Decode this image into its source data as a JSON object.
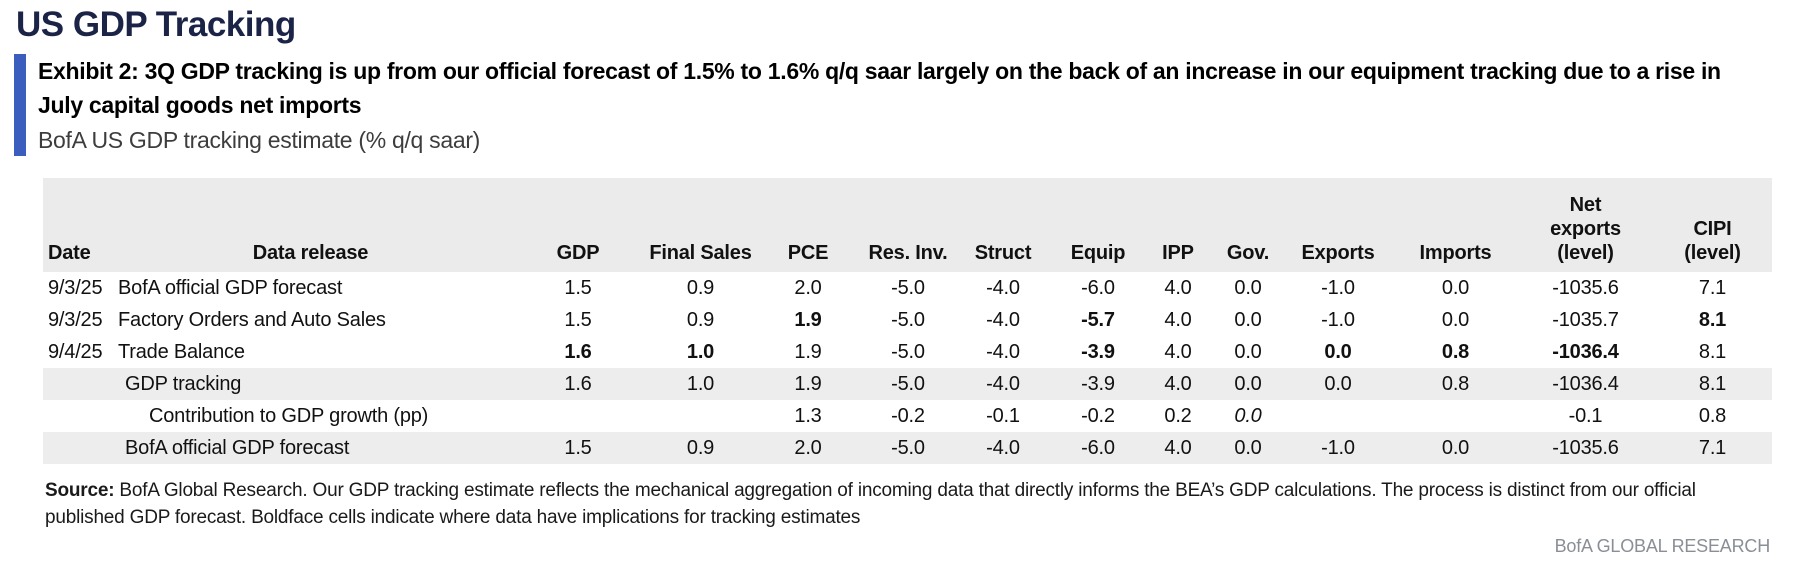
{
  "page": {
    "title": "US GDP Tracking",
    "exhibit_heading": "Exhibit 2: 3Q GDP tracking is up from our official forecast of 1.5% to 1.6% q/q saar largely on the back of an increase in our equipment tracking due to a rise in July capital goods net imports",
    "subtitle": "BofA US GDP tracking estimate (% q/q saar)",
    "accent_color": "#3A5DBE",
    "title_color": "#1B2447"
  },
  "table": {
    "columns": [
      "Date",
      "Data release",
      "GDP",
      "Final Sales",
      "PCE",
      "Res. Inv.",
      "Struct",
      "Equip",
      "IPP",
      "Gov.",
      "Exports",
      "Imports",
      "Net\nexports\n(level)",
      "CIPI\n(level)"
    ],
    "rows": [
      {
        "date": "9/3/25",
        "label": "BofA official GDP forecast",
        "indent": 0,
        "shaded": false,
        "values": [
          "1.5",
          "0.9",
          "2.0",
          "-5.0",
          "-4.0",
          "-6.0",
          "4.0",
          "0.0",
          "-1.0",
          "0.0",
          "-1035.6",
          "7.1"
        ],
        "bold": [],
        "italic": []
      },
      {
        "date": "9/3/25",
        "label": "Factory Orders and Auto Sales",
        "indent": 0,
        "shaded": false,
        "values": [
          "1.5",
          "0.9",
          "1.9",
          "-5.0",
          "-4.0",
          "-5.7",
          "4.0",
          "0.0",
          "-1.0",
          "0.0",
          "-1035.7",
          "8.1"
        ],
        "bold": [
          2,
          5,
          11
        ],
        "italic": []
      },
      {
        "date": "9/4/25",
        "label": "Trade Balance",
        "indent": 0,
        "shaded": false,
        "values": [
          "1.6",
          "1.0",
          "1.9",
          "-5.0",
          "-4.0",
          "-3.9",
          "4.0",
          "0.0",
          "0.0",
          "0.8",
          "-1036.4",
          "8.1"
        ],
        "bold": [
          0,
          1,
          5,
          8,
          9,
          10
        ],
        "italic": []
      },
      {
        "date": "",
        "label": "GDP tracking",
        "indent": 1,
        "shaded": true,
        "values": [
          "1.6",
          "1.0",
          "1.9",
          "-5.0",
          "-4.0",
          "-3.9",
          "4.0",
          "0.0",
          "0.0",
          "0.8",
          "-1036.4",
          "8.1"
        ],
        "bold": [],
        "italic": []
      },
      {
        "date": "",
        "label": "Contribution to GDP growth (pp)",
        "indent": 2,
        "shaded": false,
        "values": [
          "",
          "",
          "1.3",
          "-0.2",
          "-0.1",
          "-0.2",
          "0.2",
          "0.0",
          "",
          "",
          "-0.1",
          "0.8"
        ],
        "bold": [],
        "italic": [
          7
        ]
      },
      {
        "date": "",
        "label": "BofA official GDP forecast",
        "indent": 1,
        "shaded": true,
        "values": [
          "1.5",
          "0.9",
          "2.0",
          "-5.0",
          "-4.0",
          "-6.0",
          "4.0",
          "0.0",
          "-1.0",
          "0.0",
          "-1035.6",
          "7.1"
        ],
        "bold": [],
        "italic": []
      }
    ]
  },
  "footer": {
    "source_label": "Source:",
    "source_text": " BofA Global Research. Our GDP tracking estimate reflects the mechanical aggregation of incoming data that directly informs the BEA’s GDP calculations. The process is distinct from our official published GDP forecast. Boldface cells indicate where data have implications for tracking estimates",
    "brand": "BofA GLOBAL RESEARCH"
  }
}
